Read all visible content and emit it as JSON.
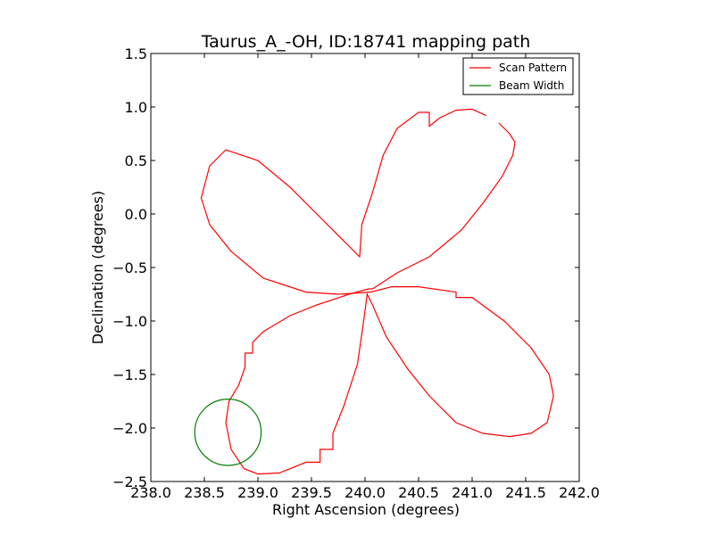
{
  "chart_data": {
    "type": "line",
    "title": "Taurus_A_-OH, ID:18741 mapping path",
    "xlabel": "Right Ascension (degrees)",
    "ylabel": "Declination (degrees)",
    "xlim": [
      238.0,
      242.0
    ],
    "ylim": [
      -2.5,
      1.5
    ],
    "xticks": [
      "238.0",
      "238.5",
      "239.0",
      "239.5",
      "240.0",
      "240.5",
      "241.0",
      "241.5",
      "242.0"
    ],
    "yticks": [
      "−2.5",
      "−2.0",
      "−1.5",
      "−1.0",
      "−0.5",
      "0.0",
      "0.5",
      "1.0",
      "1.5"
    ],
    "grid": false,
    "legend_position": "top-right",
    "legend": [
      "Scan Pattern",
      "Beam Width"
    ],
    "colors": {
      "scan": "#ff0000",
      "beam": "#008000"
    },
    "series": [
      {
        "name": "Scan Pattern",
        "x": [
          241.13,
          241.0,
          240.85,
          240.7,
          240.6,
          240.6,
          240.5,
          240.3,
          240.17,
          240.07,
          239.97,
          239.95,
          239.85,
          239.6,
          239.3,
          239.0,
          238.7,
          238.55,
          238.47,
          238.55,
          238.75,
          239.05,
          239.45,
          239.75,
          240.05,
          240.25,
          240.5,
          240.85,
          240.85,
          241.0,
          241.3,
          241.55,
          241.72,
          241.76,
          241.7,
          241.55,
          241.35,
          241.1,
          240.85,
          240.6,
          240.4,
          240.2,
          240.07,
          240.02,
          239.98,
          239.93,
          239.8,
          239.7,
          239.7,
          239.58,
          239.58,
          239.45,
          239.2,
          239.0,
          238.87,
          238.75,
          238.7,
          238.73,
          238.82,
          238.88,
          238.88,
          238.95,
          238.95,
          239.05,
          239.3,
          239.55,
          239.85,
          240.03,
          240.05,
          240.07,
          240.3,
          240.6,
          240.9,
          241.1,
          241.28,
          241.38,
          241.4,
          241.35,
          241.25
        ],
        "y": [
          0.92,
          0.98,
          0.97,
          0.9,
          0.82,
          0.95,
          0.95,
          0.8,
          0.55,
          0.2,
          -0.1,
          -0.4,
          -0.3,
          -0.05,
          0.25,
          0.5,
          0.6,
          0.45,
          0.15,
          -0.1,
          -0.35,
          -0.6,
          -0.73,
          -0.75,
          -0.73,
          -0.68,
          -0.68,
          -0.73,
          -0.78,
          -0.78,
          -1.0,
          -1.25,
          -1.5,
          -1.7,
          -1.95,
          -2.05,
          -2.08,
          -2.05,
          -1.95,
          -1.7,
          -1.45,
          -1.15,
          -0.85,
          -0.75,
          -1.05,
          -1.4,
          -1.8,
          -2.05,
          -2.2,
          -2.2,
          -2.32,
          -2.32,
          -2.42,
          -2.43,
          -2.38,
          -2.2,
          -1.95,
          -1.75,
          -1.6,
          -1.43,
          -1.3,
          -1.3,
          -1.2,
          -1.1,
          -0.95,
          -0.85,
          -0.75,
          -0.7,
          -0.7,
          -0.7,
          -0.55,
          -0.4,
          -0.15,
          0.1,
          0.35,
          0.55,
          0.67,
          0.75,
          0.85
        ]
      },
      {
        "name": "Beam Width",
        "center": [
          238.72,
          -2.04
        ],
        "radius_ra": 0.31,
        "radius_dec": 0.31
      }
    ]
  }
}
